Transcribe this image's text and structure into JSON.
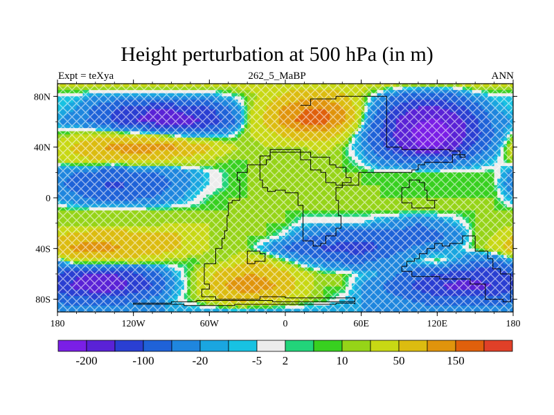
{
  "chart_data": {
    "type": "heatmap",
    "title": "Height perturbation at 500 hPa (in m)",
    "subtitle_left": "Expt = teXya",
    "subtitle_center": "262_5_MaBP",
    "subtitle_right": "ANN",
    "x_ticks": [
      {
        "value": -180,
        "label": "180"
      },
      {
        "value": -120,
        "label": "120W"
      },
      {
        "value": -60,
        "label": "60W"
      },
      {
        "value": 0,
        "label": "0"
      },
      {
        "value": 60,
        "label": "60E"
      },
      {
        "value": 120,
        "label": "120E"
      },
      {
        "value": 180,
        "label": "180"
      }
    ],
    "y_ticks": [
      {
        "value": 80,
        "label": "80N"
      },
      {
        "value": 40,
        "label": "40N"
      },
      {
        "value": 0,
        "label": "0"
      },
      {
        "value": -40,
        "label": "40S"
      },
      {
        "value": -80,
        "label": "80S"
      }
    ],
    "xlim": [
      -180,
      180
    ],
    "ylim": [
      -90,
      90
    ],
    "colorbar": {
      "levels": [
        "-200",
        "-100",
        "-20",
        "-5",
        "2",
        "10",
        "50",
        "150"
      ],
      "colors": [
        "#7a1fe6",
        "#5a22d6",
        "#2a3fd2",
        "#1f62d8",
        "#1f86de",
        "#1aa6e0",
        "#18c2e2",
        "#ececec",
        "#22d47a",
        "#38d020",
        "#96d418",
        "#c8d814",
        "#dcbc10",
        "#e0940c",
        "#e0600c",
        "#e04028"
      ]
    },
    "grid_lon": [
      -180,
      -165,
      -150,
      -135,
      -120,
      -105,
      -90,
      -75,
      -60,
      -45,
      -30,
      -15,
      0,
      15,
      30,
      45,
      60,
      75,
      90,
      105,
      120,
      135,
      150,
      165,
      180
    ],
    "grid_lat": [
      90,
      80,
      70,
      60,
      50,
      40,
      30,
      20,
      10,
      0,
      -10,
      -20,
      -30,
      -40,
      -50,
      -60,
      -70,
      -80,
      -90
    ],
    "values": [
      [
        30,
        30,
        30,
        30,
        30,
        30,
        30,
        30,
        30,
        30,
        30,
        30,
        30,
        30,
        30,
        30,
        30,
        30,
        30,
        30,
        30,
        30,
        30,
        30,
        30
      ],
      [
        -5,
        -5,
        -20,
        -20,
        -20,
        -20,
        -20,
        -20,
        -20,
        -5,
        10,
        30,
        60,
        80,
        80,
        60,
        20,
        -20,
        -60,
        -80,
        -80,
        -60,
        -20,
        -5,
        -5
      ],
      [
        -5,
        -20,
        -60,
        -100,
        -130,
        -150,
        -150,
        -130,
        -110,
        -60,
        10,
        50,
        120,
        150,
        160,
        110,
        20,
        -60,
        -130,
        -160,
        -170,
        -130,
        -80,
        -20,
        -5
      ],
      [
        -20,
        -40,
        -60,
        -110,
        -150,
        -170,
        -190,
        -170,
        -140,
        -80,
        10,
        60,
        130,
        170,
        170,
        110,
        10,
        -90,
        -160,
        -200,
        -210,
        -180,
        -110,
        -40,
        -20
      ],
      [
        10,
        20,
        30,
        30,
        20,
        10,
        -10,
        -30,
        -20,
        -10,
        20,
        30,
        60,
        80,
        80,
        40,
        -20,
        -100,
        -170,
        -220,
        -230,
        -190,
        -120,
        -50,
        10
      ],
      [
        30,
        60,
        90,
        120,
        140,
        130,
        120,
        90,
        60,
        30,
        10,
        20,
        20,
        20,
        30,
        10,
        -20,
        -90,
        -150,
        -200,
        -200,
        -160,
        -90,
        -30,
        30
      ],
      [
        20,
        40,
        50,
        50,
        60,
        50,
        40,
        30,
        20,
        10,
        10,
        10,
        10,
        10,
        10,
        10,
        -5,
        -40,
        -60,
        -80,
        -80,
        -60,
        -30,
        -10,
        20
      ],
      [
        -30,
        -50,
        -60,
        -80,
        -60,
        -50,
        -40,
        -20,
        -5,
        5,
        10,
        10,
        10,
        10,
        10,
        10,
        10,
        5,
        5,
        5,
        5,
        5,
        5,
        5,
        -30
      ],
      [
        -40,
        -70,
        -100,
        -110,
        -100,
        -80,
        -50,
        -20,
        -5,
        5,
        10,
        10,
        10,
        10,
        10,
        10,
        10,
        10,
        5,
        5,
        5,
        5,
        5,
        5,
        -40
      ],
      [
        -20,
        -40,
        -60,
        -70,
        -60,
        -50,
        -30,
        -10,
        5,
        10,
        10,
        10,
        10,
        10,
        10,
        10,
        10,
        10,
        10,
        10,
        10,
        10,
        10,
        10,
        -20
      ],
      [
        10,
        10,
        10,
        10,
        10,
        10,
        10,
        10,
        10,
        10,
        10,
        10,
        10,
        10,
        10,
        10,
        10,
        10,
        10,
        10,
        10,
        10,
        10,
        10,
        10
      ],
      [
        10,
        10,
        10,
        10,
        10,
        10,
        20,
        20,
        20,
        10,
        10,
        10,
        10,
        -5,
        -5,
        -5,
        -5,
        -20,
        -30,
        -50,
        -30,
        -10,
        10,
        10,
        10
      ],
      [
        50,
        60,
        80,
        80,
        70,
        60,
        60,
        40,
        20,
        10,
        10,
        10,
        -5,
        -40,
        -60,
        -80,
        -80,
        -80,
        -70,
        -80,
        -60,
        -40,
        10,
        20,
        50
      ],
      [
        80,
        120,
        130,
        110,
        90,
        80,
        60,
        40,
        20,
        10,
        10,
        -20,
        -60,
        -80,
        -110,
        -120,
        -130,
        -100,
        -60,
        -40,
        -30,
        -10,
        10,
        30,
        80
      ],
      [
        -20,
        30,
        30,
        30,
        30,
        20,
        10,
        5,
        10,
        20,
        50,
        40,
        10,
        -20,
        -40,
        -60,
        -60,
        -40,
        -20,
        -5,
        10,
        -20,
        -50,
        -60,
        -20
      ],
      [
        -100,
        -140,
        -160,
        -150,
        -120,
        -80,
        -20,
        10,
        40,
        80,
        100,
        90,
        60,
        30,
        10,
        10,
        -5,
        -20,
        -50,
        -80,
        -100,
        -120,
        -130,
        -130,
        -100
      ],
      [
        -120,
        -170,
        -200,
        -190,
        -140,
        -100,
        -30,
        10,
        50,
        110,
        140,
        120,
        80,
        30,
        10,
        10,
        -20,
        -50,
        -80,
        -120,
        -150,
        -170,
        -170,
        -150,
        -120
      ],
      [
        -60,
        -80,
        -90,
        -80,
        -60,
        -40,
        -10,
        10,
        30,
        60,
        60,
        50,
        40,
        20,
        10,
        -5,
        -20,
        -30,
        -40,
        -60,
        -80,
        -90,
        -90,
        -80,
        -60
      ],
      [
        -20,
        -20,
        -20,
        -20,
        -20,
        -20,
        -20,
        -20,
        -20,
        -20,
        -20,
        -20,
        -20,
        -20,
        -20,
        -20,
        -20,
        -20,
        -20,
        -20,
        -20,
        -20,
        -20,
        -20,
        -20
      ]
    ],
    "continents": [
      [
        [
          12,
          73
        ],
        [
          20,
          78
        ],
        [
          40,
          80
        ],
        [
          78,
          80
        ],
        [
          80,
          60
        ],
        [
          80,
          40
        ],
        [
          92,
          38
        ],
        [
          110,
          38
        ],
        [
          130,
          37
        ],
        [
          138,
          32
        ],
        [
          142,
          34
        ],
        [
          132,
          28
        ],
        [
          122,
          28
        ],
        [
          110,
          26
        ],
        [
          105,
          22
        ],
        [
          100,
          20
        ],
        [
          80,
          20
        ],
        [
          68,
          20
        ],
        [
          58,
          10
        ],
        [
          45,
          10
        ],
        [
          40,
          12
        ],
        [
          32,
          20
        ],
        [
          28,
          22
        ],
        [
          20,
          30
        ],
        [
          12,
          38
        ],
        [
          5,
          38
        ],
        [
          -5,
          38
        ],
        [
          -10,
          38
        ],
        [
          -12,
          30
        ],
        [
          -15,
          26
        ],
        [
          -22,
          26
        ],
        [
          -30,
          20
        ],
        [
          -38,
          14
        ],
        [
          -36,
          4
        ],
        [
          -36,
          -2
        ],
        [
          -42,
          -4
        ],
        [
          -45,
          -14
        ],
        [
          -46,
          -26
        ],
        [
          -48,
          -32
        ],
        [
          -50,
          -40
        ],
        [
          -55,
          -44
        ],
        [
          -55,
          -52
        ],
        [
          -64,
          -54
        ],
        [
          -64,
          -68
        ],
        [
          -60,
          -72
        ],
        [
          -66,
          -78
        ],
        [
          -55,
          -80
        ],
        [
          -38,
          -80
        ],
        [
          -20,
          -78
        ],
        [
          0,
          -79
        ],
        [
          25,
          -79
        ],
        [
          55,
          -79
        ],
        [
          55,
          -82
        ],
        [
          -10,
          -81
        ],
        [
          -40,
          -81
        ],
        [
          -70,
          -82
        ],
        [
          -90,
          -83
        ],
        [
          -120,
          -84
        ],
        [
          -80,
          -85
        ],
        [
          -40,
          -84
        ],
        [
          0,
          -84
        ],
        [
          40,
          -83
        ],
        [
          55,
          -84
        ]
      ],
      [
        [
          -20,
          33
        ],
        [
          -12,
          36
        ],
        [
          10,
          36
        ],
        [
          20,
          32
        ],
        [
          32,
          32
        ],
        [
          35,
          26
        ],
        [
          40,
          24
        ],
        [
          48,
          16
        ],
        [
          52,
          12
        ],
        [
          45,
          8
        ],
        [
          40,
          -2
        ],
        [
          42,
          -14
        ],
        [
          44,
          -24
        ],
        [
          40,
          -30
        ],
        [
          32,
          -36
        ],
        [
          28,
          -38
        ],
        [
          22,
          -34
        ],
        [
          14,
          -18
        ],
        [
          14,
          -6
        ],
        [
          10,
          4
        ],
        [
          0,
          6
        ],
        [
          -8,
          5
        ],
        [
          -14,
          8
        ],
        [
          -18,
          14
        ],
        [
          -20,
          20
        ],
        [
          -20,
          33
        ]
      ],
      [
        [
          92,
          8
        ],
        [
          98,
          14
        ],
        [
          106,
          12
        ],
        [
          110,
          6
        ],
        [
          112,
          -2
        ],
        [
          120,
          -2
        ],
        [
          118,
          -8
        ],
        [
          110,
          -8
        ],
        [
          100,
          -4
        ],
        [
          92,
          8
        ]
      ],
      [
        [
          150,
          -30
        ],
        [
          140,
          -36
        ],
        [
          130,
          -38
        ],
        [
          124,
          -36
        ],
        [
          118,
          -40
        ],
        [
          112,
          -44
        ],
        [
          106,
          -48
        ],
        [
          102,
          -50
        ],
        [
          96,
          -54
        ],
        [
          92,
          -58
        ],
        [
          100,
          -62
        ],
        [
          122,
          -64
        ],
        [
          146,
          -68
        ],
        [
          158,
          -80
        ],
        [
          172,
          -82
        ],
        [
          178,
          -82
        ],
        [
          178,
          -60
        ],
        [
          170,
          -56
        ],
        [
          164,
          -48
        ],
        [
          160,
          -42
        ],
        [
          150,
          -30
        ]
      ],
      [
        [
          -30,
          -42
        ],
        [
          -20,
          -44
        ],
        [
          -16,
          -50
        ],
        [
          -24,
          -52
        ],
        [
          -30,
          -48
        ],
        [
          -30,
          -42
        ]
      ]
    ]
  }
}
